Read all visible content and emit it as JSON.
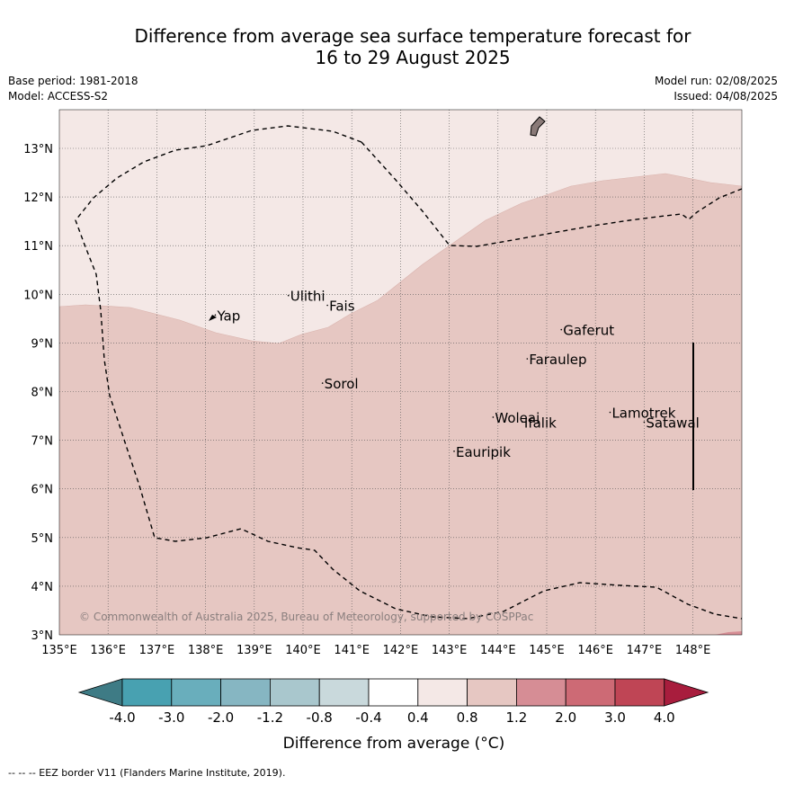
{
  "header": {
    "title_line1": "Difference from average sea surface temperature forecast for",
    "title_line2": "16 to 29 August 2025",
    "base_period": "Base period: 1981-2018",
    "model": "Model: ACCESS-S2",
    "model_run": "Model run: 02/08/2025",
    "issued": "Issued: 04/08/2025"
  },
  "map": {
    "lon_labels": [
      "135°E",
      "136°E",
      "137°E",
      "138°E",
      "139°E",
      "140°E",
      "141°E",
      "142°E",
      "143°E",
      "144°E",
      "145°E",
      "146°E",
      "147°E",
      "148°E"
    ],
    "lat_labels": [
      "3°N",
      "4°N",
      "5°N",
      "6°N",
      "7°N",
      "8°N",
      "9°N",
      "10°N",
      "11°N",
      "12°N",
      "13°N"
    ],
    "places": [
      {
        "name": "Yap",
        "lon": 138.2,
        "lat": 9.5
      },
      {
        "name": "Ulithi",
        "lon": 139.7,
        "lat": 9.9
      },
      {
        "name": "Fais",
        "lon": 140.5,
        "lat": 9.7
      },
      {
        "name": "Sorol",
        "lon": 140.4,
        "lat": 8.1
      },
      {
        "name": "Gaferut",
        "lon": 145.3,
        "lat": 9.2
      },
      {
        "name": "Faraulep",
        "lon": 144.6,
        "lat": 8.6
      },
      {
        "name": "Woleai",
        "lon": 143.9,
        "lat": 7.4
      },
      {
        "name": "Ifalik",
        "lon": 144.5,
        "lat": 7.3
      },
      {
        "name": "Lamotrek",
        "lon": 146.3,
        "lat": 7.5
      },
      {
        "name": "Satawal",
        "lon": 147.0,
        "lat": 7.3
      },
      {
        "name": "Eauripik",
        "lon": 143.1,
        "lat": 6.7
      }
    ],
    "copyright": "© Commonwealth of Australia 2025, Bureau of Meteorology, supported by COSPPac"
  },
  "colorbar": {
    "labels": [
      "-4.0",
      "-3.0",
      "-2.0",
      "-1.2",
      "-0.8",
      "-0.4",
      "0.4",
      "0.8",
      "1.2",
      "2.0",
      "3.0",
      "4.0"
    ],
    "colors": [
      "#3e7b85",
      "#48a1b1",
      "#69aebc",
      "#86b6c2",
      "#a9c7cd",
      "#c9d9dc",
      "#ffffff",
      "#f4e8e6",
      "#e6c7c2",
      "#d68d95",
      "#cd6a75",
      "#bf4555",
      "#a81d3d"
    ],
    "label": "Difference from average (°C)"
  },
  "footnote": "--  --  -- EEZ border V11 (Flanders Marine Institute, 2019)."
}
